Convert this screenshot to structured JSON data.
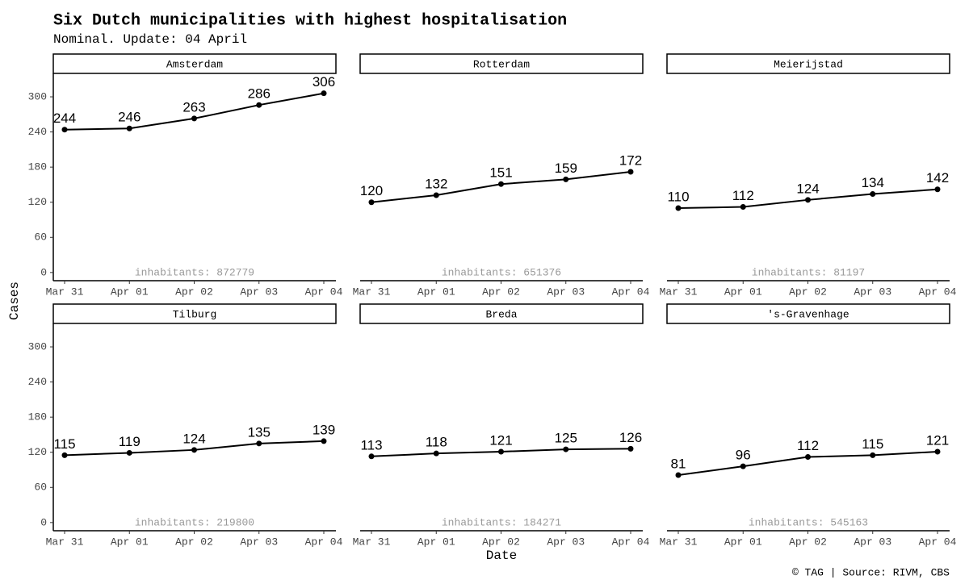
{
  "title": "Six Dutch municipalities with highest hospitalisation",
  "subtitle": "Nominal. Update: 04 April",
  "x_label": "Date",
  "y_label": "Cases",
  "caption": "© TAG | Source: RIVM, CBS",
  "chart_data": [
    {
      "type": "line",
      "title": "Amsterdam",
      "categories": [
        "Mar 31",
        "Apr 01",
        "Apr 02",
        "Apr 03",
        "Apr 04"
      ],
      "values": [
        244,
        246,
        263,
        286,
        306
      ],
      "annotation": "inhabitants: 872779",
      "color": "#000000",
      "ylim": [
        -14,
        340
      ],
      "yticks": [
        0,
        60,
        120,
        180,
        240,
        300
      ]
    },
    {
      "type": "line",
      "title": "Rotterdam",
      "categories": [
        "Mar 31",
        "Apr 01",
        "Apr 02",
        "Apr 03",
        "Apr 04"
      ],
      "values": [
        120,
        132,
        151,
        159,
        172
      ],
      "annotation": "inhabitants: 651376",
      "color": "#000000",
      "ylim": [
        -14,
        340
      ]
    },
    {
      "type": "line",
      "title": "Meierijstad",
      "categories": [
        "Mar 31",
        "Apr 01",
        "Apr 02",
        "Apr 03",
        "Apr 04"
      ],
      "values": [
        110,
        112,
        124,
        134,
        142
      ],
      "annotation": "inhabitants: 81197",
      "color": "#000000",
      "ylim": [
        -14,
        340
      ]
    },
    {
      "type": "line",
      "title": "Tilburg",
      "categories": [
        "Mar 31",
        "Apr 01",
        "Apr 02",
        "Apr 03",
        "Apr 04"
      ],
      "values": [
        115,
        119,
        124,
        135,
        139
      ],
      "annotation": "inhabitants: 219800",
      "color": "#000000",
      "ylim": [
        -14,
        340
      ],
      "yticks": [
        0,
        60,
        120,
        180,
        240,
        300
      ]
    },
    {
      "type": "line",
      "title": "Breda",
      "categories": [
        "Mar 31",
        "Apr 01",
        "Apr 02",
        "Apr 03",
        "Apr 04"
      ],
      "values": [
        113,
        118,
        121,
        125,
        126
      ],
      "annotation": "inhabitants: 184271",
      "color": "#000000",
      "ylim": [
        -14,
        340
      ]
    },
    {
      "type": "line",
      "title": "'s-Gravenhage",
      "categories": [
        "Mar 31",
        "Apr 01",
        "Apr 02",
        "Apr 03",
        "Apr 04"
      ],
      "values": [
        81,
        96,
        112,
        115,
        121
      ],
      "annotation": "inhabitants: 545163",
      "color": "#000000",
      "ylim": [
        -14,
        340
      ]
    }
  ]
}
